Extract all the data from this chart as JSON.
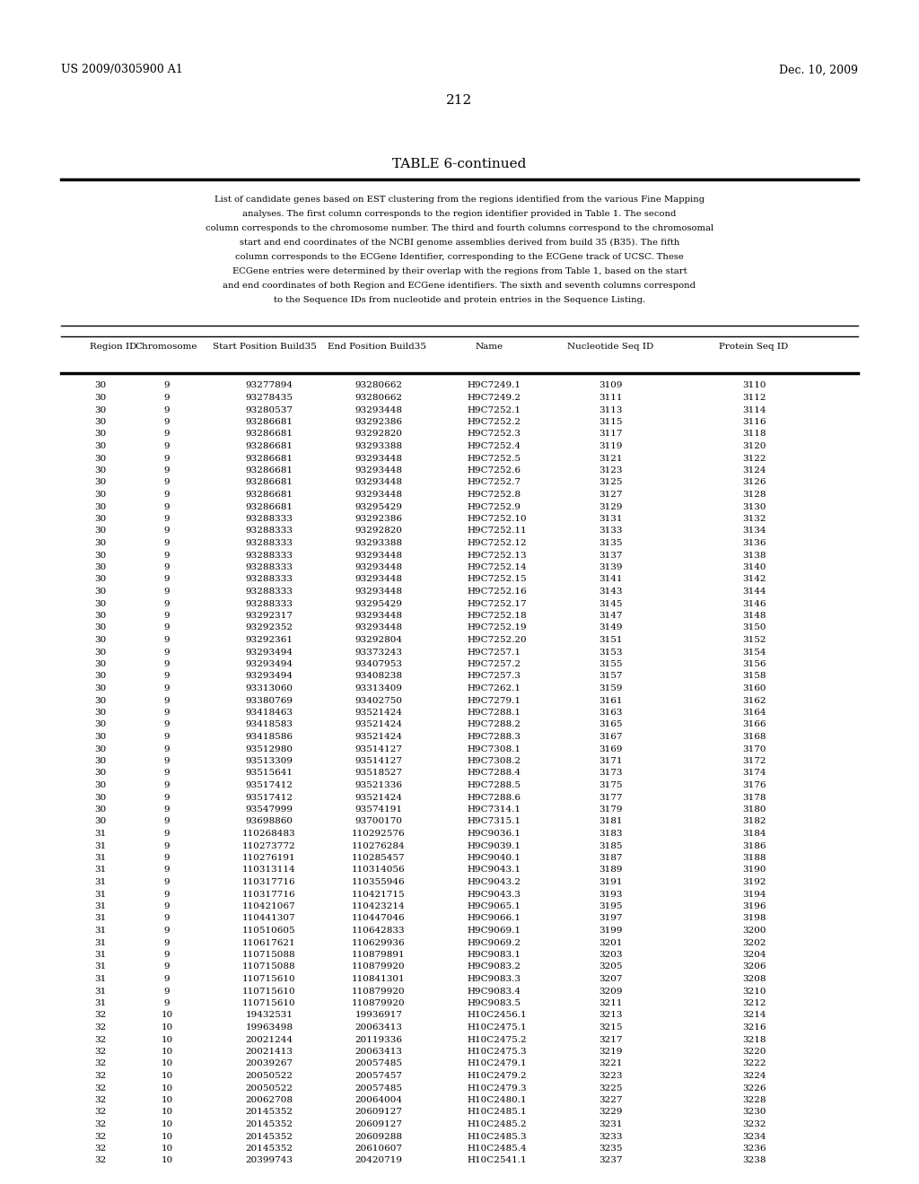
{
  "header_left": "US 2009/0305900 A1",
  "header_right": "Dec. 10, 2009",
  "page_number": "212",
  "table_title": "TABLE 6-continued",
  "caption_lines": [
    "List of candidate genes based on EST clustering from the regions identified from the various Fine Mapping",
    "analyses. The first column corresponds to the region identifier provided in Table 1. The second",
    "column corresponds to the chromosome number. The third and fourth columns correspond to the chromosomal",
    "start and end coordinates of the NCBI genome assemblies derived from build 35 (B35). The fifth",
    "column corresponds to the ECGene Identifier, corresponding to the ECGene track of UCSC. These",
    "ECGene entries were determined by their overlap with the regions from Table 1, based on the start",
    "and end coordinates of both Region and ECGene identifiers. The sixth and seventh columns correspond",
    "to the Sequence IDs from nucleotide and protein entries in the Sequence Listing."
  ],
  "col_headers": [
    "Region ID",
    "Chromosome",
    "Start Position Build35",
    "End Position Build35",
    "Name",
    "Nucleotide Seq ID",
    "Protein Seq ID"
  ],
  "rows": [
    [
      "30",
      "9",
      "93277894",
      "93280662",
      "H9C7249.1",
      "3109",
      "3110"
    ],
    [
      "30",
      "9",
      "93278435",
      "93280662",
      "H9C7249.2",
      "3111",
      "3112"
    ],
    [
      "30",
      "9",
      "93280537",
      "93293448",
      "H9C7252.1",
      "3113",
      "3114"
    ],
    [
      "30",
      "9",
      "93286681",
      "93292386",
      "H9C7252.2",
      "3115",
      "3116"
    ],
    [
      "30",
      "9",
      "93286681",
      "93292820",
      "H9C7252.3",
      "3117",
      "3118"
    ],
    [
      "30",
      "9",
      "93286681",
      "93293388",
      "H9C7252.4",
      "3119",
      "3120"
    ],
    [
      "30",
      "9",
      "93286681",
      "93293448",
      "H9C7252.5",
      "3121",
      "3122"
    ],
    [
      "30",
      "9",
      "93286681",
      "93293448",
      "H9C7252.6",
      "3123",
      "3124"
    ],
    [
      "30",
      "9",
      "93286681",
      "93293448",
      "H9C7252.7",
      "3125",
      "3126"
    ],
    [
      "30",
      "9",
      "93286681",
      "93293448",
      "H9C7252.8",
      "3127",
      "3128"
    ],
    [
      "30",
      "9",
      "93286681",
      "93295429",
      "H9C7252.9",
      "3129",
      "3130"
    ],
    [
      "30",
      "9",
      "93288333",
      "93292386",
      "H9C7252.10",
      "3131",
      "3132"
    ],
    [
      "30",
      "9",
      "93288333",
      "93292820",
      "H9C7252.11",
      "3133",
      "3134"
    ],
    [
      "30",
      "9",
      "93288333",
      "93293388",
      "H9C7252.12",
      "3135",
      "3136"
    ],
    [
      "30",
      "9",
      "93288333",
      "93293448",
      "H9C7252.13",
      "3137",
      "3138"
    ],
    [
      "30",
      "9",
      "93288333",
      "93293448",
      "H9C7252.14",
      "3139",
      "3140"
    ],
    [
      "30",
      "9",
      "93288333",
      "93293448",
      "H9C7252.15",
      "3141",
      "3142"
    ],
    [
      "30",
      "9",
      "93288333",
      "93293448",
      "H9C7252.16",
      "3143",
      "3144"
    ],
    [
      "30",
      "9",
      "93288333",
      "93295429",
      "H9C7252.17",
      "3145",
      "3146"
    ],
    [
      "30",
      "9",
      "93292317",
      "93293448",
      "H9C7252.18",
      "3147",
      "3148"
    ],
    [
      "30",
      "9",
      "93292352",
      "93293448",
      "H9C7252.19",
      "3149",
      "3150"
    ],
    [
      "30",
      "9",
      "93292361",
      "93292804",
      "H9C7252.20",
      "3151",
      "3152"
    ],
    [
      "30",
      "9",
      "93293494",
      "93373243",
      "H9C7257.1",
      "3153",
      "3154"
    ],
    [
      "30",
      "9",
      "93293494",
      "93407953",
      "H9C7257.2",
      "3155",
      "3156"
    ],
    [
      "30",
      "9",
      "93293494",
      "93408238",
      "H9C7257.3",
      "3157",
      "3158"
    ],
    [
      "30",
      "9",
      "93313060",
      "93313409",
      "H9C7262.1",
      "3159",
      "3160"
    ],
    [
      "30",
      "9",
      "93380769",
      "93402750",
      "H9C7279.1",
      "3161",
      "3162"
    ],
    [
      "30",
      "9",
      "93418463",
      "93521424",
      "H9C7288.1",
      "3163",
      "3164"
    ],
    [
      "30",
      "9",
      "93418583",
      "93521424",
      "H9C7288.2",
      "3165",
      "3166"
    ],
    [
      "30",
      "9",
      "93418586",
      "93521424",
      "H9C7288.3",
      "3167",
      "3168"
    ],
    [
      "30",
      "9",
      "93512980",
      "93514127",
      "H9C7308.1",
      "3169",
      "3170"
    ],
    [
      "30",
      "9",
      "93513309",
      "93514127",
      "H9C7308.2",
      "3171",
      "3172"
    ],
    [
      "30",
      "9",
      "93515641",
      "93518527",
      "H9C7288.4",
      "3173",
      "3174"
    ],
    [
      "30",
      "9",
      "93517412",
      "93521336",
      "H9C7288.5",
      "3175",
      "3176"
    ],
    [
      "30",
      "9",
      "93517412",
      "93521424",
      "H9C7288.6",
      "3177",
      "3178"
    ],
    [
      "30",
      "9",
      "93547999",
      "93574191",
      "H9C7314.1",
      "3179",
      "3180"
    ],
    [
      "30",
      "9",
      "93698860",
      "93700170",
      "H9C7315.1",
      "3181",
      "3182"
    ],
    [
      "31",
      "9",
      "110268483",
      "110292576",
      "H9C9036.1",
      "3183",
      "3184"
    ],
    [
      "31",
      "9",
      "110273772",
      "110276284",
      "H9C9039.1",
      "3185",
      "3186"
    ],
    [
      "31",
      "9",
      "110276191",
      "110285457",
      "H9C9040.1",
      "3187",
      "3188"
    ],
    [
      "31",
      "9",
      "110313114",
      "110314056",
      "H9C9043.1",
      "3189",
      "3190"
    ],
    [
      "31",
      "9",
      "110317716",
      "110355946",
      "H9C9043.2",
      "3191",
      "3192"
    ],
    [
      "31",
      "9",
      "110317716",
      "110421715",
      "H9C9043.3",
      "3193",
      "3194"
    ],
    [
      "31",
      "9",
      "110421067",
      "110423214",
      "H9C9065.1",
      "3195",
      "3196"
    ],
    [
      "31",
      "9",
      "110441307",
      "110447046",
      "H9C9066.1",
      "3197",
      "3198"
    ],
    [
      "31",
      "9",
      "110510605",
      "110642833",
      "H9C9069.1",
      "3199",
      "3200"
    ],
    [
      "31",
      "9",
      "110617621",
      "110629936",
      "H9C9069.2",
      "3201",
      "3202"
    ],
    [
      "31",
      "9",
      "110715088",
      "110879891",
      "H9C9083.1",
      "3203",
      "3204"
    ],
    [
      "31",
      "9",
      "110715088",
      "110879920",
      "H9C9083.2",
      "3205",
      "3206"
    ],
    [
      "31",
      "9",
      "110715610",
      "110841301",
      "H9C9083.3",
      "3207",
      "3208"
    ],
    [
      "31",
      "9",
      "110715610",
      "110879920",
      "H9C9083.4",
      "3209",
      "3210"
    ],
    [
      "31",
      "9",
      "110715610",
      "110879920",
      "H9C9083.5",
      "3211",
      "3212"
    ],
    [
      "32",
      "10",
      "19432531",
      "19936917",
      "H10C2456.1",
      "3213",
      "3214"
    ],
    [
      "32",
      "10",
      "19963498",
      "20063413",
      "H10C2475.1",
      "3215",
      "3216"
    ],
    [
      "32",
      "10",
      "20021244",
      "20119336",
      "H10C2475.2",
      "3217",
      "3218"
    ],
    [
      "32",
      "10",
      "20021413",
      "20063413",
      "H10C2475.3",
      "3219",
      "3220"
    ],
    [
      "32",
      "10",
      "20039267",
      "20057485",
      "H10C2479.1",
      "3221",
      "3222"
    ],
    [
      "32",
      "10",
      "20050522",
      "20057457",
      "H10C2479.2",
      "3223",
      "3224"
    ],
    [
      "32",
      "10",
      "20050522",
      "20057485",
      "H10C2479.3",
      "3225",
      "3226"
    ],
    [
      "32",
      "10",
      "20062708",
      "20064004",
      "H10C2480.1",
      "3227",
      "3228"
    ],
    [
      "32",
      "10",
      "20145352",
      "20609127",
      "H10C2485.1",
      "3229",
      "3230"
    ],
    [
      "32",
      "10",
      "20145352",
      "20609127",
      "H10C2485.2",
      "3231",
      "3232"
    ],
    [
      "32",
      "10",
      "20145352",
      "20609288",
      "H10C2485.3",
      "3233",
      "3234"
    ],
    [
      "32",
      "10",
      "20145352",
      "20610607",
      "H10C2485.4",
      "3235",
      "3236"
    ],
    [
      "32",
      "10",
      "20399743",
      "20420719",
      "H10C2541.1",
      "3237",
      "3238"
    ]
  ],
  "bg_color": "#ffffff",
  "text_color": "#000000",
  "font_family": "DejaVu Serif"
}
